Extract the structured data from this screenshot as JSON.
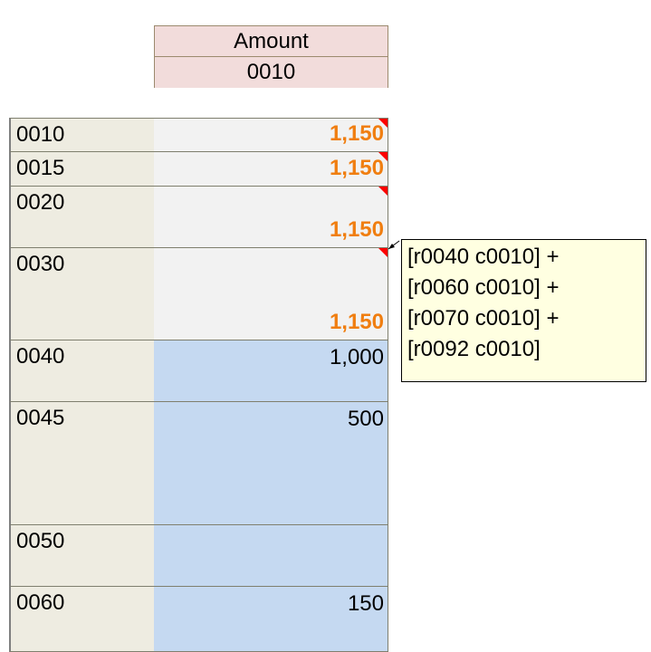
{
  "header": {
    "title": "Amount",
    "column_code": "0010"
  },
  "rows": [
    {
      "code": "0010",
      "value": "1,150",
      "kind": "calc"
    },
    {
      "code": "0015",
      "value": "1,150",
      "kind": "calc"
    },
    {
      "code": "0020",
      "value": "1,150",
      "kind": "calc"
    },
    {
      "code": "0030",
      "value": "1,150",
      "kind": "calc"
    },
    {
      "code": "0040",
      "value": "1,000",
      "kind": "input"
    },
    {
      "code": "0045",
      "value": "500",
      "kind": "input"
    },
    {
      "code": "0050",
      "kind": "input"
    },
    {
      "code": "0060",
      "value": "150",
      "kind": "input"
    }
  ],
  "comment": {
    "lines": [
      "[r0040 c0010] +",
      "[r0060 c0010] +",
      "[r0070 c0010] +",
      "[r0092 c0010]"
    ]
  }
}
